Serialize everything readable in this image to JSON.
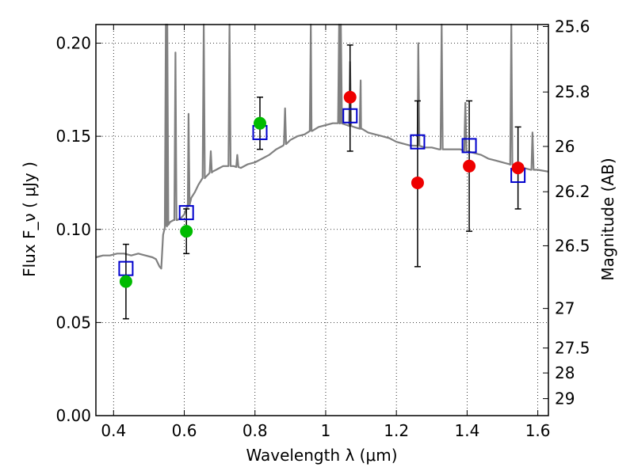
{
  "chart_data": {
    "type": "scatter",
    "title": "",
    "xlabel": "Wavelength  λ (μm)",
    "ylabel": "Flux  F_ν  ( μJy )",
    "ylabel_right": "Magnitude (AB)",
    "xlim": [
      0.35,
      1.63
    ],
    "ylim": [
      0.0,
      0.21
    ],
    "grid": true,
    "x_ticks": [
      0.4,
      0.6,
      0.8,
      1.0,
      1.2,
      1.4,
      1.6
    ],
    "x_tick_labels": [
      "0.4",
      "0.6",
      "0.8",
      "1",
      "1.2",
      "1.4",
      "1.6"
    ],
    "y_ticks": [
      0.0,
      0.05,
      0.1,
      0.15,
      0.2
    ],
    "y_tick_labels": [
      "0.00",
      "0.05",
      "0.10",
      "0.15",
      "0.20"
    ],
    "right_ticks": [
      {
        "mag": 25.6,
        "label": "25.6"
      },
      {
        "mag": 25.8,
        "label": "25.8"
      },
      {
        "mag": 26.0,
        "label": "26"
      },
      {
        "mag": 26.2,
        "label": "26.2"
      },
      {
        "mag": 26.5,
        "label": "26.5"
      },
      {
        "mag": 27.0,
        "label": "27"
      },
      {
        "mag": 27.5,
        "label": "27.5"
      },
      {
        "mag": 28.0,
        "label": "28"
      },
      {
        "mag": 29.0,
        "label": "29"
      }
    ],
    "model_spectrum": {
      "color": "#808080",
      "x": [
        0.35,
        0.37,
        0.39,
        0.41,
        0.43,
        0.45,
        0.47,
        0.49,
        0.51,
        0.52,
        0.53,
        0.535,
        0.54,
        0.545,
        0.55,
        0.56,
        0.57,
        0.58,
        0.59,
        0.6,
        0.61,
        0.62,
        0.63,
        0.64,
        0.65,
        0.66,
        0.67,
        0.68,
        0.69,
        0.7,
        0.71,
        0.72,
        0.74,
        0.76,
        0.78,
        0.8,
        0.82,
        0.84,
        0.86,
        0.88,
        0.9,
        0.92,
        0.94,
        0.96,
        0.98,
        1.0,
        1.02,
        1.04,
        1.06,
        1.08,
        1.1,
        1.12,
        1.14,
        1.16,
        1.18,
        1.2,
        1.22,
        1.24,
        1.26,
        1.28,
        1.3,
        1.32,
        1.34,
        1.36,
        1.38,
        1.4,
        1.42,
        1.44,
        1.46,
        1.48,
        1.5,
        1.52,
        1.54,
        1.56,
        1.58,
        1.6,
        1.63
      ],
      "y": [
        0.085,
        0.086,
        0.086,
        0.087,
        0.087,
        0.086,
        0.087,
        0.086,
        0.085,
        0.084,
        0.08,
        0.079,
        0.097,
        0.101,
        0.102,
        0.104,
        0.105,
        0.105,
        0.106,
        0.108,
        0.112,
        0.117,
        0.12,
        0.124,
        0.127,
        0.128,
        0.13,
        0.131,
        0.132,
        0.133,
        0.134,
        0.134,
        0.134,
        0.133,
        0.135,
        0.136,
        0.138,
        0.14,
        0.143,
        0.145,
        0.148,
        0.15,
        0.151,
        0.153,
        0.155,
        0.156,
        0.157,
        0.157,
        0.156,
        0.155,
        0.154,
        0.152,
        0.151,
        0.15,
        0.149,
        0.147,
        0.146,
        0.145,
        0.145,
        0.144,
        0.144,
        0.143,
        0.143,
        0.143,
        0.143,
        0.142,
        0.141,
        0.14,
        0.138,
        0.137,
        0.136,
        0.135,
        0.134,
        0.133,
        0.132,
        0.132,
        0.131
      ],
      "emission_lines": [
        {
          "x": 0.548,
          "peak": 0.215
        },
        {
          "x": 0.552,
          "peak": 0.215
        },
        {
          "x": 0.575,
          "peak": 0.195
        },
        {
          "x": 0.612,
          "peak": 0.162
        },
        {
          "x": 0.655,
          "peak": 0.215
        },
        {
          "x": 0.675,
          "peak": 0.142
        },
        {
          "x": 0.728,
          "peak": 0.215
        },
        {
          "x": 0.75,
          "peak": 0.14
        },
        {
          "x": 0.885,
          "peak": 0.165
        },
        {
          "x": 0.958,
          "peak": 0.215
        },
        {
          "x": 1.038,
          "peak": 0.215
        },
        {
          "x": 1.043,
          "peak": 0.215
        },
        {
          "x": 1.069,
          "peak": 0.19
        },
        {
          "x": 1.099,
          "peak": 0.18
        },
        {
          "x": 1.262,
          "peak": 0.2
        },
        {
          "x": 1.328,
          "peak": 0.215
        },
        {
          "x": 1.395,
          "peak": 0.168
        },
        {
          "x": 1.525,
          "peak": 0.215
        },
        {
          "x": 1.585,
          "peak": 0.152
        }
      ]
    },
    "model_photometry": {
      "marker": "open-square",
      "color": "#0000cc",
      "points": [
        {
          "x": 0.435,
          "y": 0.079
        },
        {
          "x": 0.606,
          "y": 0.109
        },
        {
          "x": 0.814,
          "y": 0.152
        },
        {
          "x": 1.069,
          "y": 0.161
        },
        {
          "x": 1.26,
          "y": 0.147
        },
        {
          "x": 1.406,
          "y": 0.145
        },
        {
          "x": 1.544,
          "y": 0.129
        }
      ]
    },
    "observed_optical": {
      "marker": "filled-circle",
      "color": "#00bb00",
      "points": [
        {
          "x": 0.435,
          "y": 0.072,
          "err_lo": 0.052,
          "err_hi": 0.092
        },
        {
          "x": 0.606,
          "y": 0.099,
          "err_lo": 0.087,
          "err_hi": 0.111
        },
        {
          "x": 0.814,
          "y": 0.157,
          "err_lo": 0.143,
          "err_hi": 0.171
        }
      ]
    },
    "observed_nir": {
      "marker": "filled-circle",
      "color": "#ee0000",
      "points": [
        {
          "x": 1.069,
          "y": 0.171,
          "err_lo": 0.142,
          "err_hi": 0.199
        },
        {
          "x": 1.26,
          "y": 0.125,
          "err_lo": 0.08,
          "err_hi": 0.169
        },
        {
          "x": 1.406,
          "y": 0.134,
          "err_lo": 0.099,
          "err_hi": 0.169
        },
        {
          "x": 1.544,
          "y": 0.133,
          "err_lo": 0.111,
          "err_hi": 0.155
        }
      ]
    }
  }
}
